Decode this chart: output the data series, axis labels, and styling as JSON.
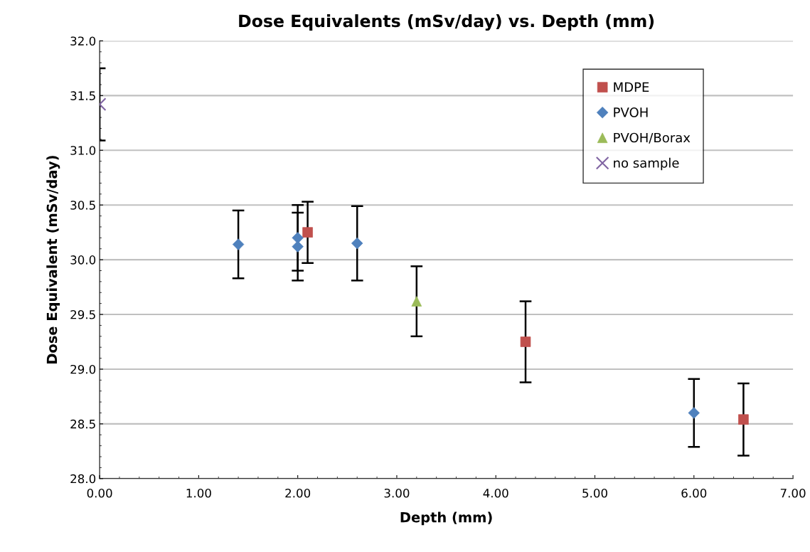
{
  "chart_data": {
    "type": "scatter",
    "title": "Dose Equivalents (mSv/day) vs. Depth (mm)",
    "xlabel": "Depth (mm)",
    "ylabel": "Dose Equivalent (mSv/day)",
    "series": [
      {
        "name": "MDPE",
        "color": "#c0504d",
        "marker": "square",
        "x": [
          2.1,
          4.3,
          6.5
        ],
        "values": [
          30.25,
          29.25,
          28.54
        ],
        "errors": [
          0.28,
          0.37,
          0.33
        ]
      },
      {
        "name": "PVOH",
        "color": "#4f81bd",
        "marker": "diamond",
        "x": [
          1.4,
          2.0,
          2.0,
          2.6,
          6.0
        ],
        "values": [
          30.14,
          30.2,
          30.12,
          30.15,
          28.6
        ],
        "errors": [
          0.31,
          0.3,
          0.31,
          0.34,
          0.31
        ]
      },
      {
        "name": "PVOH/Borax",
        "color": "#9bbb59",
        "marker": "triangle",
        "x": [
          3.2
        ],
        "values": [
          29.62
        ],
        "errors": [
          0.32
        ]
      },
      {
        "name": "no sample",
        "color": "#8064a2",
        "marker": "cross",
        "x": [
          0.0
        ],
        "values": [
          31.42
        ],
        "errors": [
          0.33
        ]
      }
    ],
    "xlim": [
      0,
      7
    ],
    "xticks": [
      {
        "value": 0,
        "label": "0.00"
      },
      {
        "value": 1,
        "label": "1.00"
      },
      {
        "value": 2,
        "label": "2.00"
      },
      {
        "value": 3,
        "label": "3.00"
      },
      {
        "value": 4,
        "label": "4.00"
      },
      {
        "value": 5,
        "label": "5.00"
      },
      {
        "value": 6,
        "label": "6.00"
      },
      {
        "value": 7,
        "label": "7.00"
      }
    ],
    "ylim": [
      28,
      32
    ],
    "yticks": [
      {
        "value": 28,
        "label": "28.0"
      },
      {
        "value": 28.5,
        "label": "28.5"
      },
      {
        "value": 29,
        "label": "29.0"
      },
      {
        "value": 29.5,
        "label": "29.5"
      },
      {
        "value": 30,
        "label": "30.0"
      },
      {
        "value": 30.5,
        "label": "30.5"
      },
      {
        "value": 31,
        "label": "31.0"
      },
      {
        "value": 31.5,
        "label": "31.5"
      },
      {
        "value": 32,
        "label": "32.0"
      }
    ],
    "grid": "y",
    "legend": "top right"
  }
}
